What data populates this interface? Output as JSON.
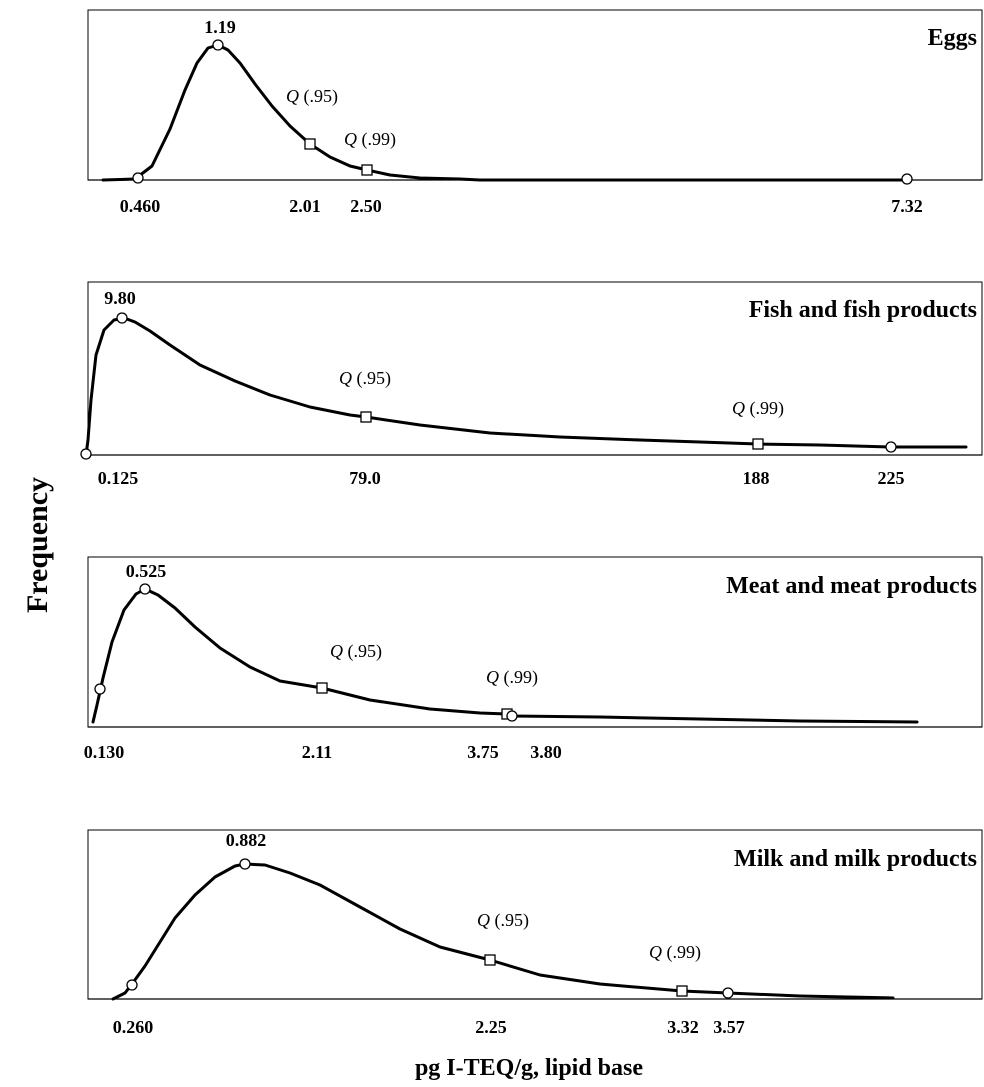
{
  "chart_data": {
    "type": "line",
    "ylabel": "Frequency",
    "xlabel": "pg I-TEQ/g, lipid base",
    "panels": [
      {
        "title": "Eggs",
        "peak_label": "1.19",
        "q95_label": "Q (.95)",
        "q99_label": "Q (.99)",
        "tick_labels": [
          "0.460",
          "2.01",
          "2.50",
          "7.32"
        ],
        "markers": [
          {
            "label": "0.460",
            "shape": "circle"
          },
          {
            "label": "1.19",
            "shape": "circle"
          },
          {
            "label": "2.01",
            "shape": "square"
          },
          {
            "label": "2.50",
            "shape": "square"
          },
          {
            "label": "7.32",
            "shape": "circle"
          }
        ]
      },
      {
        "title": "Fish and fish products",
        "peak_label": "9.80",
        "q95_label": "Q (.95)",
        "q99_label": "Q (.99)",
        "tick_labels": [
          "0.125",
          "79.0",
          "188",
          "225"
        ],
        "markers": [
          {
            "label": "0.125",
            "shape": "circle"
          },
          {
            "label": "9.80",
            "shape": "circle"
          },
          {
            "label": "79.0",
            "shape": "square"
          },
          {
            "label": "188",
            "shape": "square"
          },
          {
            "label": "225",
            "shape": "circle"
          }
        ]
      },
      {
        "title": "Meat and meat products",
        "peak_label": "0.525",
        "q95_label": "Q (.95)",
        "q99_label": "Q (.99)",
        "tick_labels": [
          "0.130",
          "2.11",
          "3.75",
          "3.80"
        ],
        "markers": [
          {
            "label": "0.130",
            "shape": "circle"
          },
          {
            "label": "0.525",
            "shape": "circle"
          },
          {
            "label": "2.11",
            "shape": "square"
          },
          {
            "label": "3.75",
            "shape": "square"
          },
          {
            "label": "3.80",
            "shape": "circle"
          }
        ]
      },
      {
        "title": "Milk and milk products",
        "peak_label": "0.882",
        "q95_label": "Q (.95)",
        "q99_label": "Q (.99)",
        "tick_labels": [
          "0.260",
          "2.25",
          "3.32",
          "3.57"
        ],
        "markers": [
          {
            "label": "0.260",
            "shape": "circle"
          },
          {
            "label": "0.882",
            "shape": "circle"
          },
          {
            "label": "2.25",
            "shape": "square"
          },
          {
            "label": "3.32",
            "shape": "square"
          },
          {
            "label": "3.57",
            "shape": "circle"
          }
        ]
      }
    ]
  }
}
